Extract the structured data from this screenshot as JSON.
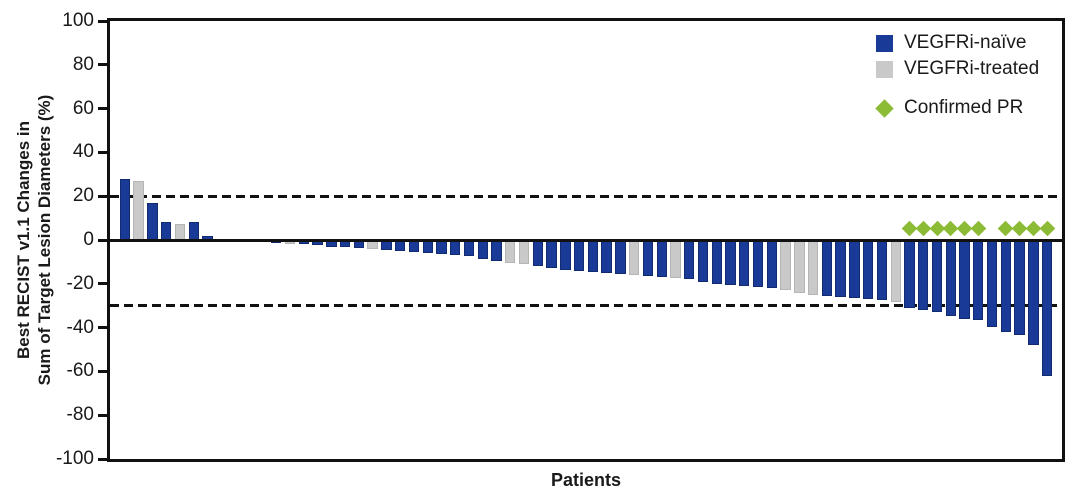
{
  "chart_data": {
    "type": "bar",
    "subtype": "waterfall",
    "title": "",
    "xlabel": "Patients",
    "ylabel": "Best RECIST v1.1 Changes in Sum of Target Lesion Diameters (%)",
    "ylabel_lines": [
      "Best RECIST v1.1 Changes in",
      "Sum of Target Lesion Diameters (%)"
    ],
    "ylim": [
      -100,
      100
    ],
    "yticks": [
      100,
      80,
      60,
      40,
      20,
      0,
      -20,
      -40,
      -60,
      -80,
      -100
    ],
    "reference_lines": [
      20,
      -30
    ],
    "grid": false,
    "legend_position": "top-right-inside",
    "legend": [
      {
        "label": "VEGFRi-naïve",
        "marker": "square",
        "color": "#1a3a97",
        "code": "n"
      },
      {
        "label": "VEGFRi-treated",
        "marker": "square",
        "color": "#c9c9c9",
        "code": "t"
      },
      {
        "label": "Confirmed PR",
        "marker": "diamond",
        "color": "#8cbb35"
      }
    ],
    "colors": {
      "naive_blue": "#1a3a97",
      "treated_gray": "#c9c9c9",
      "confirmed_pr_green": "#8cbb35",
      "axis": "#111111"
    },
    "patients": {
      "values": [
        28,
        27,
        17,
        8,
        7.5,
        8,
        2,
        0,
        0,
        -0.5,
        -1,
        -1.5,
        -2,
        -2,
        -2.5,
        -3,
        -3,
        -3.5,
        -4,
        -4.5,
        -5,
        -5.5,
        -6,
        -6.5,
        -7,
        -7.5,
        -8.5,
        -9.5,
        -10.5,
        -11,
        -12,
        -13,
        -13.5,
        -14,
        -14.5,
        -15,
        -15.5,
        -16,
        -16.5,
        -17,
        -17.5,
        -18,
        -19,
        -20,
        -20.5,
        -21,
        -21.5,
        -22,
        -23,
        -24,
        -25,
        -25.5,
        -26,
        -26.5,
        -27,
        -27.5,
        -28.5,
        -31,
        -32,
        -33,
        -34.5,
        -36,
        -36.5,
        -39.5,
        -42,
        -43.5,
        -48,
        -62
      ],
      "group": [
        "n",
        "t",
        "n",
        "n",
        "t",
        "n",
        "n",
        "n",
        "n",
        "n",
        "n",
        "n",
        "t",
        "n",
        "n",
        "n",
        "n",
        "n",
        "t",
        "n",
        "n",
        "n",
        "n",
        "n",
        "n",
        "n",
        "n",
        "n",
        "t",
        "t",
        "n",
        "n",
        "n",
        "n",
        "n",
        "n",
        "n",
        "t",
        "n",
        "n",
        "t",
        "n",
        "n",
        "n",
        "n",
        "n",
        "n",
        "n",
        "t",
        "t",
        "t",
        "n",
        "n",
        "n",
        "n",
        "n",
        "t",
        "n",
        "n",
        "n",
        "n",
        "n",
        "n",
        "n",
        "n",
        "n",
        "n",
        "n"
      ],
      "confirmed_pr_indices": [
        57,
        58,
        59,
        60,
        61,
        62,
        64,
        65,
        66,
        67
      ]
    }
  }
}
